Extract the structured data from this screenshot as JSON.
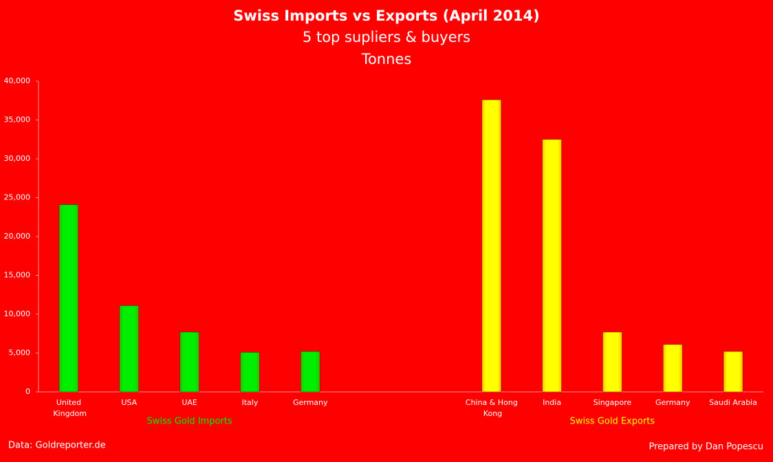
{
  "chart_data": {
    "type": "bar",
    "title": "Swiss Imports vs Exports (April 2014)",
    "subtitle": "5 top supliers & buyers",
    "unit_label": "Tonnes",
    "categories": [
      "United Kingdom",
      "USA",
      "UAE",
      "Italy",
      "Germany",
      null,
      null,
      "China & Hong Kong",
      "India",
      "Singapore",
      "Germany",
      "Saudi Arabia"
    ],
    "series": [
      {
        "name": "Swiss Gold Imports",
        "color": "#00ee00",
        "values": [
          24100,
          11100,
          7700,
          5100,
          5200,
          null,
          null,
          null,
          null,
          null,
          null,
          null
        ]
      },
      {
        "name": "Swiss Gold Exports",
        "color": "#ffff00",
        "values": [
          null,
          null,
          null,
          null,
          null,
          null,
          null,
          37600,
          32500,
          7700,
          6100,
          5200
        ]
      }
    ],
    "ylim": [
      0,
      40000
    ],
    "yticks": [
      0,
      {
        "value": 5000,
        "label": "5,000"
      },
      {
        "value": 10000,
        "label": "10,000"
      },
      {
        "value": 15000,
        "label": "15,000"
      },
      {
        "value": 20000,
        "label": "20,000"
      },
      {
        "value": 25000,
        "label": "25,000"
      },
      {
        "value": 30000,
        "label": "30,000"
      },
      {
        "value": 35000,
        "label": "35,000"
      },
      {
        "value": 40000,
        "label": "40,000"
      }
    ],
    "grid": false,
    "source": "Data: Goldreporter.de",
    "credit": "Prepared by Dan Popescu"
  }
}
